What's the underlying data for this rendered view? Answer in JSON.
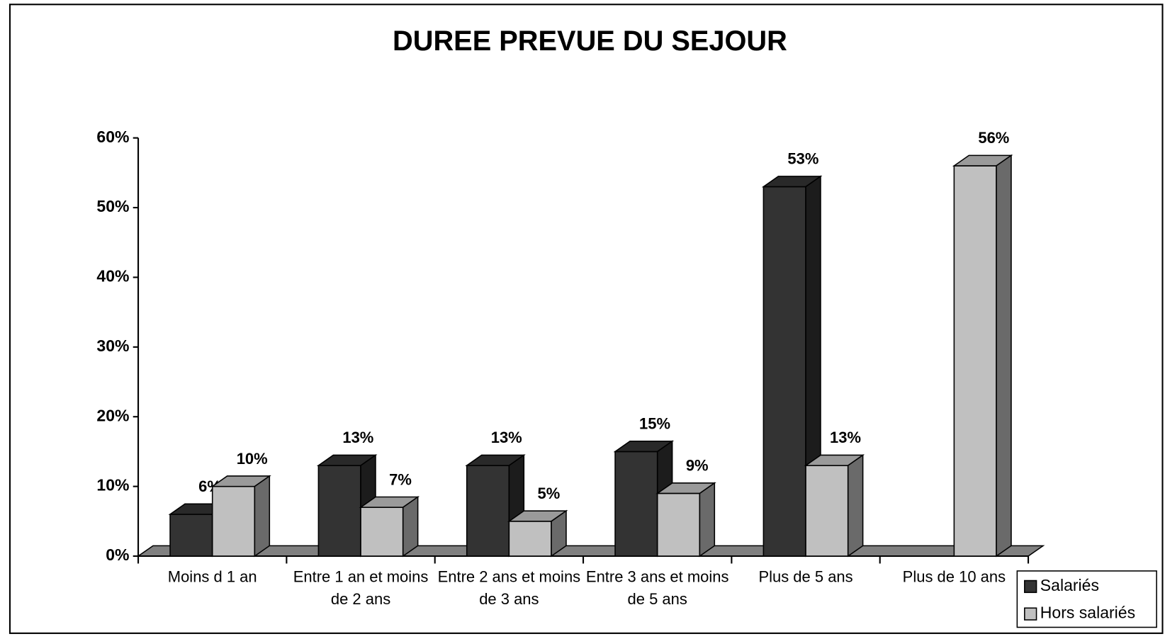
{
  "chart_data": {
    "type": "bar3d",
    "title": "DUREE PREVUE DU SEJOUR",
    "categories": [
      "Moins d 1 an",
      "Entre 1 an et moins de 2 ans",
      "Entre 2 ans et moins de 3 ans",
      "Entre 3 ans et moins de 5 ans",
      "Plus de 5 ans",
      "Plus de 10 ans"
    ],
    "series": [
      {
        "name": "Salariés",
        "color": "#333333",
        "values": [
          6,
          13,
          13,
          15,
          53,
          null
        ],
        "value_labels": [
          "6%",
          "13%",
          "13%",
          "15%",
          "53%",
          null
        ]
      },
      {
        "name": "Hors salariés",
        "color": "#c0c0c0",
        "values": [
          10,
          7,
          5,
          9,
          13,
          56
        ],
        "value_labels": [
          "10%",
          "7%",
          "5%",
          "9%",
          "13%",
          "56%"
        ]
      }
    ],
    "ylim": [
      0,
      60
    ],
    "yticks": [
      {
        "value": 0,
        "label": "0%"
      },
      {
        "value": 10,
        "label": "10%"
      },
      {
        "value": 20,
        "label": "20%"
      },
      {
        "value": 30,
        "label": "30%"
      },
      {
        "value": 40,
        "label": "40%"
      },
      {
        "value": 50,
        "label": "50%"
      },
      {
        "value": 60,
        "label": "60%"
      }
    ],
    "legend": "bottom-right"
  }
}
